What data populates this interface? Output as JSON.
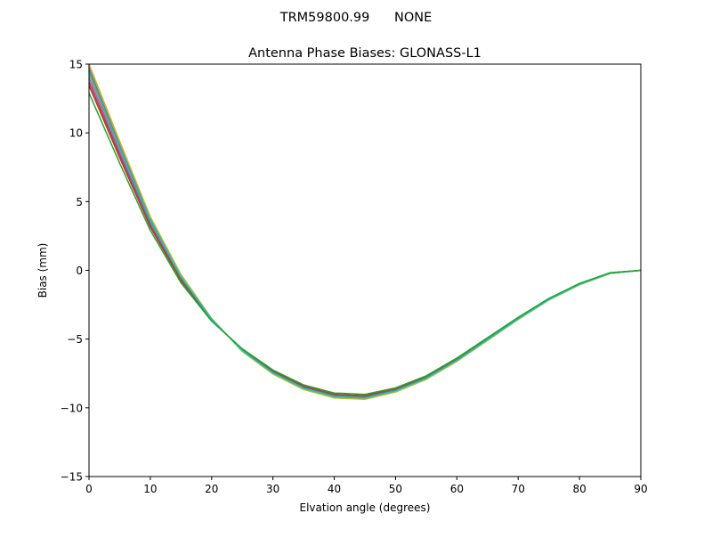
{
  "chart_data": {
    "type": "line",
    "suptitle": "TRM59800.99      NONE",
    "title": "Antenna Phase Biases: GLONASS-L1",
    "xlabel": "Elvation angle (degrees)",
    "ylabel": "Bias (mm)",
    "xlim": [
      0,
      90
    ],
    "ylim": [
      -15,
      15
    ],
    "xticks": [
      0,
      10,
      20,
      30,
      40,
      50,
      60,
      70,
      80,
      90
    ],
    "yticks": [
      -15,
      -10,
      -5,
      0,
      5,
      10,
      15
    ],
    "ytick_labels": [
      "−15",
      "−10",
      "−5",
      "0",
      "5",
      "10",
      "15"
    ],
    "grid": false,
    "x": [
      0,
      5,
      10,
      15,
      20,
      25,
      30,
      35,
      40,
      45,
      50,
      55,
      60,
      65,
      70,
      75,
      80,
      85,
      90
    ],
    "series": [
      {
        "color": "#1f77b4",
        "values": [
          14.55,
          9.0,
          3.65,
          -0.45,
          -3.55,
          -5.85,
          -7.48,
          -8.59,
          -9.19,
          -9.29,
          -8.78,
          -7.87,
          -6.56,
          -5.05,
          -3.54,
          -2.13,
          -1.03,
          -0.22,
          0
        ]
      },
      {
        "color": "#ff7f0e",
        "values": [
          14.28,
          8.8,
          3.52,
          -0.52,
          -3.58,
          -5.82,
          -7.44,
          -8.54,
          -9.14,
          -9.25,
          -8.74,
          -7.83,
          -6.53,
          -5.03,
          -3.52,
          -2.11,
          -1.01,
          -0.21,
          0
        ]
      },
      {
        "color": "#d62728",
        "values": [
          13.45,
          8.2,
          3.15,
          -0.75,
          -3.65,
          -5.75,
          -7.33,
          -8.42,
          -9.01,
          -9.11,
          -8.63,
          -7.74,
          -6.44,
          -4.95,
          -3.46,
          -2.07,
          -0.98,
          -0.19,
          0
        ]
      },
      {
        "color": "#9467bd",
        "values": [
          14.0,
          8.6,
          3.4,
          -0.6,
          -3.6,
          -5.8,
          -7.4,
          -8.5,
          -9.1,
          -9.2,
          -8.7,
          -7.8,
          -6.5,
          -5.0,
          -3.5,
          -2.1,
          -1.0,
          -0.2,
          0
        ]
      },
      {
        "color": "#8c564b",
        "values": [
          13.72,
          8.4,
          3.28,
          -0.68,
          -3.62,
          -5.78,
          -7.36,
          -8.46,
          -9.06,
          -9.16,
          -8.66,
          -7.77,
          -6.47,
          -4.98,
          -3.48,
          -2.09,
          -0.99,
          -0.19,
          0
        ]
      },
      {
        "color": "#e377c2",
        "values": [
          14.9,
          9.25,
          3.8,
          -0.36,
          -3.52,
          -5.88,
          -7.52,
          -8.64,
          -9.24,
          -9.34,
          -8.82,
          -7.9,
          -6.6,
          -5.08,
          -3.56,
          -2.15,
          -1.04,
          -0.22,
          0
        ]
      },
      {
        "color": "#7f7f7f",
        "values": [
          14.7,
          9.1,
          3.72,
          -0.4,
          -3.54,
          -5.86,
          -7.5,
          -8.61,
          -9.22,
          -9.32,
          -8.8,
          -7.88,
          -6.58,
          -5.07,
          -3.55,
          -2.14,
          -1.03,
          -0.22,
          0
        ]
      },
      {
        "color": "#bcbd22",
        "values": [
          15.0,
          9.4,
          3.9,
          -0.3,
          -3.5,
          -5.9,
          -7.55,
          -8.67,
          -9.28,
          -9.38,
          -8.85,
          -7.93,
          -6.62,
          -5.1,
          -3.58,
          -2.16,
          -1.05,
          -0.23,
          0
        ]
      },
      {
        "color": "#17becf",
        "values": [
          14.44,
          8.92,
          3.6,
          -0.48,
          -3.56,
          -5.84,
          -7.46,
          -8.57,
          -9.17,
          -9.27,
          -8.76,
          -7.85,
          -6.55,
          -5.04,
          -3.53,
          -2.12,
          -1.02,
          -0.21,
          0
        ]
      },
      {
        "color": "#2ca02c",
        "values": [
          12.9,
          7.8,
          2.9,
          -0.9,
          -3.7,
          -5.7,
          -7.25,
          -8.33,
          -8.92,
          -9.02,
          -8.55,
          -7.67,
          -6.38,
          -4.9,
          -3.42,
          -2.04,
          -0.95,
          -0.17,
          0
        ]
      }
    ]
  }
}
